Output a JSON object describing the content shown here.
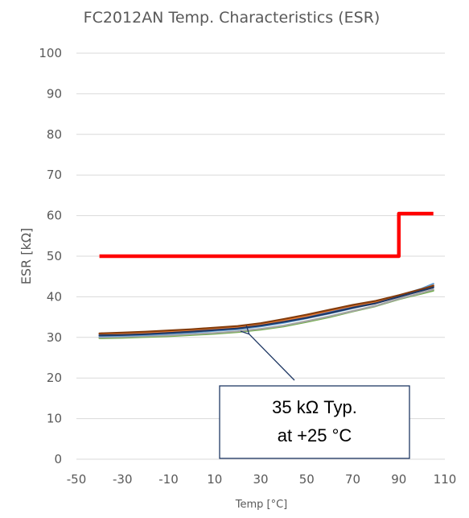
{
  "chart_data": {
    "type": "line",
    "title": "FC2012AN Temp. Characteristics (ESR)",
    "xlabel": "Temp [°C]",
    "ylabel": "ESR [kΩ]",
    "xlim": [
      -50,
      110
    ],
    "ylim": [
      0,
      100
    ],
    "x_ticks": [
      -50,
      -30,
      -10,
      10,
      30,
      50,
      70,
      90,
      110
    ],
    "y_ticks": [
      0,
      10,
      20,
      30,
      40,
      50,
      60,
      70,
      80,
      90,
      100
    ],
    "grid": "horizontal",
    "series": [
      {
        "color": "#ff0000",
        "x": [
          -40,
          90,
          90,
          105
        ],
        "y": [
          50,
          50,
          60.5,
          60.5
        ]
      },
      {
        "color": "#70ad47",
        "x": [
          -40,
          -30,
          -20,
          -10,
          0,
          10,
          20,
          30,
          40,
          50,
          60,
          70,
          80,
          90,
          100,
          105
        ],
        "y": [
          29.8,
          29.9,
          30.1,
          30.3,
          30.6,
          30.9,
          31.3,
          31.9,
          32.7,
          33.8,
          35.0,
          36.4,
          37.7,
          39.4,
          40.8,
          41.5
        ]
      },
      {
        "color": "#a5a5a5",
        "x": [
          -40,
          -30,
          -20,
          -10,
          0,
          10,
          20,
          30,
          40,
          50,
          60,
          70,
          80,
          90,
          100,
          105
        ],
        "y": [
          30.0,
          30.1,
          30.3,
          30.5,
          30.8,
          31.1,
          31.5,
          32.1,
          32.9,
          34.0,
          35.2,
          36.5,
          37.8,
          39.5,
          41.0,
          41.8
        ]
      },
      {
        "color": "#5b9bd5",
        "x": [
          -40,
          -30,
          -20,
          -10,
          0,
          10,
          20,
          30,
          40,
          50,
          60,
          70,
          80,
          90,
          100,
          105
        ],
        "y": [
          30.3,
          30.4,
          30.6,
          30.9,
          31.2,
          31.6,
          32.0,
          32.7,
          33.6,
          34.7,
          35.9,
          37.2,
          38.5,
          40.3,
          42.0,
          43.2
        ]
      },
      {
        "color": "#4472c4",
        "x": [
          -40,
          -30,
          -20,
          -10,
          0,
          10,
          20,
          30,
          40,
          50,
          60,
          70,
          80,
          90,
          100,
          105
        ],
        "y": [
          30.6,
          30.7,
          30.9,
          31.2,
          31.5,
          31.9,
          32.3,
          33.0,
          33.9,
          35.0,
          36.2,
          37.4,
          38.6,
          40.0,
          41.6,
          42.5
        ]
      },
      {
        "color": "#ed7d31",
        "x": [
          -40,
          -30,
          -20,
          -10,
          0,
          10,
          20,
          30,
          40,
          50,
          60,
          70,
          80,
          90,
          100,
          105
        ],
        "y": [
          30.9,
          31.0,
          31.2,
          31.5,
          31.8,
          32.2,
          32.6,
          33.3,
          34.2,
          35.3,
          36.6,
          37.8,
          38.8,
          40.2,
          41.8,
          42.8
        ]
      },
      {
        "color": "#843c0c",
        "x": [
          -40,
          -30,
          -20,
          -10,
          0,
          10,
          20,
          30,
          40,
          50,
          60,
          70,
          80,
          90,
          100,
          105
        ],
        "y": [
          31.0,
          31.2,
          31.4,
          31.7,
          32.0,
          32.4,
          32.8,
          33.5,
          34.5,
          35.6,
          36.8,
          38.0,
          39.0,
          40.4,
          41.9,
          42.7
        ]
      },
      {
        "color": "#203864",
        "x": [
          -40,
          -30,
          -20,
          -10,
          0,
          10,
          20,
          30,
          40,
          50,
          60,
          70,
          80,
          90,
          100,
          105
        ],
        "y": [
          30.5,
          30.6,
          30.8,
          31.1,
          31.4,
          31.8,
          32.2,
          32.9,
          33.8,
          34.8,
          36.0,
          37.3,
          38.4,
          40.0,
          41.5,
          42.3
        ]
      }
    ],
    "annotation": {
      "lines": [
        "35 kΩ Typ.",
        "at +25 °C"
      ],
      "arrow_target": {
        "x": 25,
        "y": 32
      }
    }
  },
  "colors": {
    "grid": "#d9d9d9",
    "text": "#595959",
    "callout_border": "#1f3864"
  }
}
